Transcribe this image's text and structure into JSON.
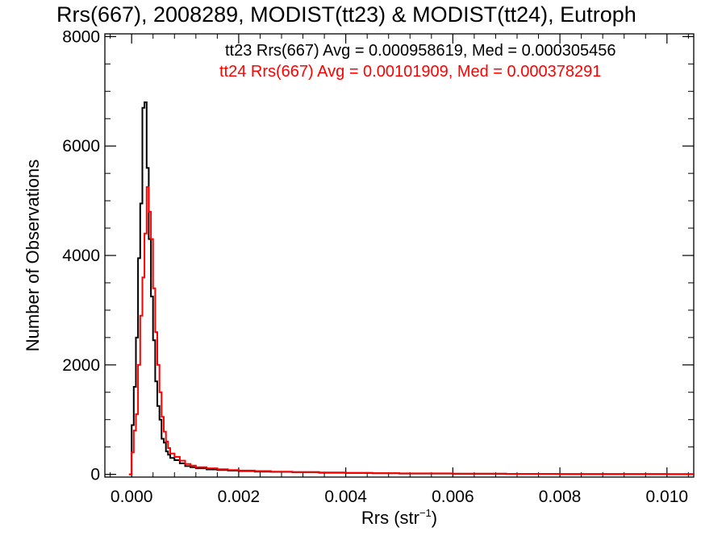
{
  "chart_data": {
    "type": "histogram-step",
    "title": "Rrs(667), 2008289, MODIST(tt23) & MODIST(tt24), Eutroph",
    "xlabel": {
      "text": "Rrs (str",
      "sup": "−1",
      "close": ")"
    },
    "ylabel": "Number of Observations",
    "xlim": [
      -0.0005,
      0.0105
    ],
    "ylim": [
      -50,
      8050
    ],
    "xticks": [
      0.0,
      0.002,
      0.004,
      0.006,
      0.008,
      0.01
    ],
    "xtick_labels": [
      "0.000",
      "0.002",
      "0.004",
      "0.006",
      "0.008",
      "0.010"
    ],
    "yticks": [
      0,
      2000,
      4000,
      6000,
      8000
    ],
    "ytick_labels": [
      "0",
      "2000",
      "4000",
      "6000",
      "8000"
    ],
    "legend": [
      {
        "label": "tt23 Rrs(667) Avg = 0.000958619, Med = 0.000305456",
        "color": "#000000"
      },
      {
        "label": "tt24 Rrs(667) Avg = 0.00101909, Med = 0.000378291",
        "color": "#ff0000"
      }
    ],
    "legend_position": "top-right",
    "series": [
      {
        "name": "tt23",
        "color": "#000000",
        "x": [
          -5e-05,
          0.0,
          4e-05,
          8e-05,
          0.00012,
          0.00016,
          0.0002,
          0.00024,
          0.00028,
          0.00032,
          0.00036,
          0.0004,
          0.00044,
          0.00048,
          0.00052,
          0.00056,
          0.0006,
          0.00064,
          0.00068,
          0.00072,
          0.0008,
          0.0009,
          0.001,
          0.0011,
          0.0012,
          0.0014,
          0.0016,
          0.0018,
          0.002,
          0.0023,
          0.0026,
          0.003,
          0.0035,
          0.004,
          0.0045,
          0.005,
          0.006,
          0.007,
          0.008,
          0.009,
          0.01,
          0.0105
        ],
        "y": [
          0,
          900,
          1600,
          2500,
          3950,
          4950,
          6700,
          6800,
          5600,
          4300,
          3250,
          2450,
          1700,
          1250,
          1000,
          650,
          580,
          420,
          360,
          300,
          260,
          200,
          150,
          130,
          110,
          90,
          80,
          70,
          60,
          50,
          45,
          40,
          30,
          25,
          20,
          15,
          10,
          8,
          5,
          4,
          3,
          2
        ]
      },
      {
        "name": "tt24",
        "color": "#ff0000",
        "x": [
          -5e-05,
          0.0,
          4e-05,
          8e-05,
          0.00012,
          0.00016,
          0.0002,
          0.00024,
          0.00028,
          0.00032,
          0.00036,
          0.0004,
          0.00044,
          0.00048,
          0.00052,
          0.00056,
          0.0006,
          0.00064,
          0.00068,
          0.00072,
          0.0008,
          0.0009,
          0.001,
          0.0011,
          0.0012,
          0.0014,
          0.0016,
          0.0018,
          0.002,
          0.0023,
          0.0026,
          0.003,
          0.0035,
          0.004,
          0.0045,
          0.005,
          0.006,
          0.007,
          0.008,
          0.009,
          0.01,
          0.0105
        ],
        "y": [
          0,
          400,
          800,
          1100,
          2000,
          2900,
          3600,
          4400,
          5250,
          4800,
          4300,
          3400,
          2600,
          2000,
          1500,
          1050,
          780,
          600,
          480,
          380,
          320,
          250,
          190,
          160,
          130,
          110,
          95,
          80,
          70,
          60,
          50,
          42,
          35,
          28,
          22,
          18,
          12,
          9,
          6,
          5,
          4,
          3
        ]
      }
    ],
    "grid": false
  }
}
